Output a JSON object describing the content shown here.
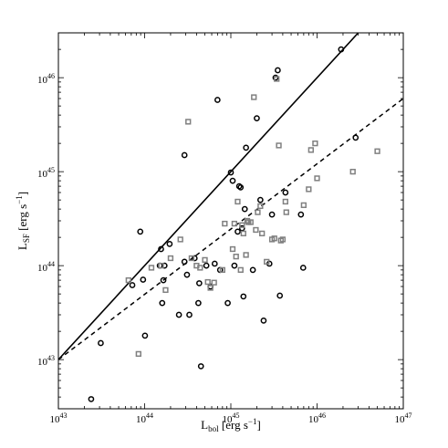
{
  "chart_data": {
    "type": "scatter",
    "x_scale": "log",
    "y_scale": "log",
    "xlim": [
      1e+43,
      1e+47
    ],
    "ylim": [
      3e+42,
      3e+46
    ],
    "grid": false,
    "xlabel": {
      "main": "L",
      "sub": "bol",
      "rest": " [erg s",
      "sup": "−1",
      "close": "]"
    },
    "ylabel": {
      "main": "L",
      "sub": "SF",
      "rest": " [erg s",
      "sup": "−1",
      "close": "]"
    },
    "x_ticks": [
      {
        "value": 1e+43,
        "base": "10",
        "exp": "43"
      },
      {
        "value": 1e+44,
        "base": "10",
        "exp": "44"
      },
      {
        "value": 1e+45,
        "base": "10",
        "exp": "45"
      },
      {
        "value": 1e+46,
        "base": "10",
        "exp": "46"
      },
      {
        "value": 1e+47,
        "base": "10",
        "exp": "47"
      }
    ],
    "y_ticks": [
      {
        "value": 1e+43,
        "base": "10",
        "exp": "43"
      },
      {
        "value": 1e+44,
        "base": "10",
        "exp": "44"
      },
      {
        "value": 1e+45,
        "base": "10",
        "exp": "45"
      },
      {
        "value": 1e+46,
        "base": "10",
        "exp": "46"
      }
    ],
    "lines": [
      {
        "style": "solid",
        "x": [
          1e+43,
          3e+46
        ],
        "y": [
          1e+43,
          3e+46
        ]
      },
      {
        "style": "dashed",
        "x": [
          1e+43,
          1e+47
        ],
        "y": [
          1e+43,
          6e+45
        ]
      }
    ],
    "series": [
      {
        "marker": "circle",
        "color": "#000000",
        "points": [
          [
            2.4e+43,
            3.8e+42
          ],
          [
            3.1e+43,
            1.5e+43
          ],
          [
            7.2e+43,
            6.2e+43
          ],
          [
            8.9e+43,
            2.3e+44
          ],
          [
            9.6e+43,
            7.1e+43
          ],
          [
            1.01e+44,
            1.8e+43
          ],
          [
            1.5e+44,
            1e+44
          ],
          [
            1.55e+44,
            1.5e+44
          ],
          [
            1.6e+44,
            4e+43
          ],
          [
            1.65e+44,
            7e+43
          ],
          [
            1.7e+44,
            1e+44
          ],
          [
            1.95e+44,
            1.7e+44
          ],
          [
            2.5e+44,
            3e+43
          ],
          [
            2.9e+44,
            1.1e+44
          ],
          [
            2.9e+44,
            1.5e+45
          ],
          [
            3.1e+44,
            8e+43
          ],
          [
            3.3e+44,
            3e+43
          ],
          [
            3.8e+44,
            1.2e+44
          ],
          [
            4.2e+44,
            4e+43
          ],
          [
            4.3e+44,
            6.5e+43
          ],
          [
            4.5e+44,
            8.5e+42
          ],
          [
            5.2e+44,
            1e+44
          ],
          [
            5.8e+44,
            6e+43
          ],
          [
            6.5e+44,
            1.05e+44
          ],
          [
            7e+44,
            5.8e+45
          ],
          [
            7.5e+44,
            9e+43
          ],
          [
            9.2e+44,
            4e+43
          ],
          [
            1e+45,
            9.8e+44
          ],
          [
            1.05e+45,
            8e+44
          ],
          [
            1.1e+45,
            1e+44
          ],
          [
            1.2e+45,
            2.3e+44
          ],
          [
            1.25e+45,
            7e+44
          ],
          [
            1.3e+45,
            6.8e+44
          ],
          [
            1.35e+45,
            2.5e+44
          ],
          [
            1.4e+45,
            4.7e+43
          ],
          [
            1.45e+45,
            4e+44
          ],
          [
            1.5e+45,
            1.8e+45
          ],
          [
            1.8e+45,
            9e+43
          ],
          [
            2e+45,
            3.7e+45
          ],
          [
            2.2e+45,
            5e+44
          ],
          [
            2.4e+45,
            2.6e+43
          ],
          [
            2.8e+45,
            1.05e+44
          ],
          [
            3e+45,
            3.5e+44
          ],
          [
            3.3e+45,
            1e+46
          ],
          [
            3.5e+45,
            1.2e+46
          ],
          [
            3.7e+45,
            4.8e+43
          ],
          [
            4.3e+45,
            6e+44
          ],
          [
            6.5e+45,
            3.5e+44
          ],
          [
            6.9e+45,
            9.5e+43
          ],
          [
            1.9e+46,
            2e+46
          ],
          [
            2.8e+46,
            2.3e+45
          ]
        ]
      },
      {
        "marker": "square",
        "color": "#808080",
        "points": [
          [
            6.5e+43,
            7e+43
          ],
          [
            8.5e+43,
            1.15e+43
          ],
          [
            1.2e+44,
            9.5e+43
          ],
          [
            1.55e+44,
            1e+44
          ],
          [
            1.75e+44,
            5.5e+43
          ],
          [
            2e+44,
            1.2e+44
          ],
          [
            2.6e+44,
            1.9e+44
          ],
          [
            3.2e+44,
            3.4e+45
          ],
          [
            3.5e+44,
            1.2e+44
          ],
          [
            4e+44,
            1e+44
          ],
          [
            4.4e+44,
            9.5e+43
          ],
          [
            5e+44,
            1.15e+44
          ],
          [
            5.4e+44,
            6.7e+43
          ],
          [
            5.8e+44,
            5.8e+43
          ],
          [
            6.4e+44,
            6.6e+43
          ],
          [
            8e+44,
            9e+43
          ],
          [
            8.5e+44,
            2.8e+44
          ],
          [
            1.05e+45,
            1.5e+44
          ],
          [
            1.1e+45,
            2.8e+44
          ],
          [
            1.15e+45,
            1.25e+44
          ],
          [
            1.2e+45,
            4.8e+44
          ],
          [
            1.3e+45,
            9e+43
          ],
          [
            1.35e+45,
            2.7e+44
          ],
          [
            1.4e+45,
            2.2e+44
          ],
          [
            1.5e+45,
            1.3e+44
          ],
          [
            1.55e+45,
            3e+44
          ],
          [
            1.6e+45,
            2.9e+44
          ],
          [
            1.7e+45,
            2.9e+44
          ],
          [
            1.85e+45,
            6.2e+45
          ],
          [
            1.95e+45,
            2.4e+44
          ],
          [
            2.05e+45,
            3.7e+44
          ],
          [
            2.2e+45,
            4.3e+44
          ],
          [
            2.3e+45,
            2.2e+44
          ],
          [
            2.6e+45,
            1.1e+44
          ],
          [
            3e+45,
            1.9e+44
          ],
          [
            3.2e+45,
            1.95e+44
          ],
          [
            3.4e+45,
            9.7e+45
          ],
          [
            3.6e+45,
            1.9e+45
          ],
          [
            3.8e+45,
            1.85e+44
          ],
          [
            4e+45,
            1.9e+44
          ],
          [
            4.3e+45,
            4.8e+44
          ],
          [
            4.4e+45,
            3.7e+44
          ],
          [
            7e+45,
            4.4e+44
          ],
          [
            8e+45,
            6.5e+44
          ],
          [
            8.5e+45,
            1.7e+45
          ],
          [
            9.5e+45,
            2e+45
          ],
          [
            1e+46,
            8.5e+44
          ],
          [
            2.6e+46,
            1e+45
          ],
          [
            5e+46,
            1.65e+45
          ]
        ]
      }
    ]
  }
}
